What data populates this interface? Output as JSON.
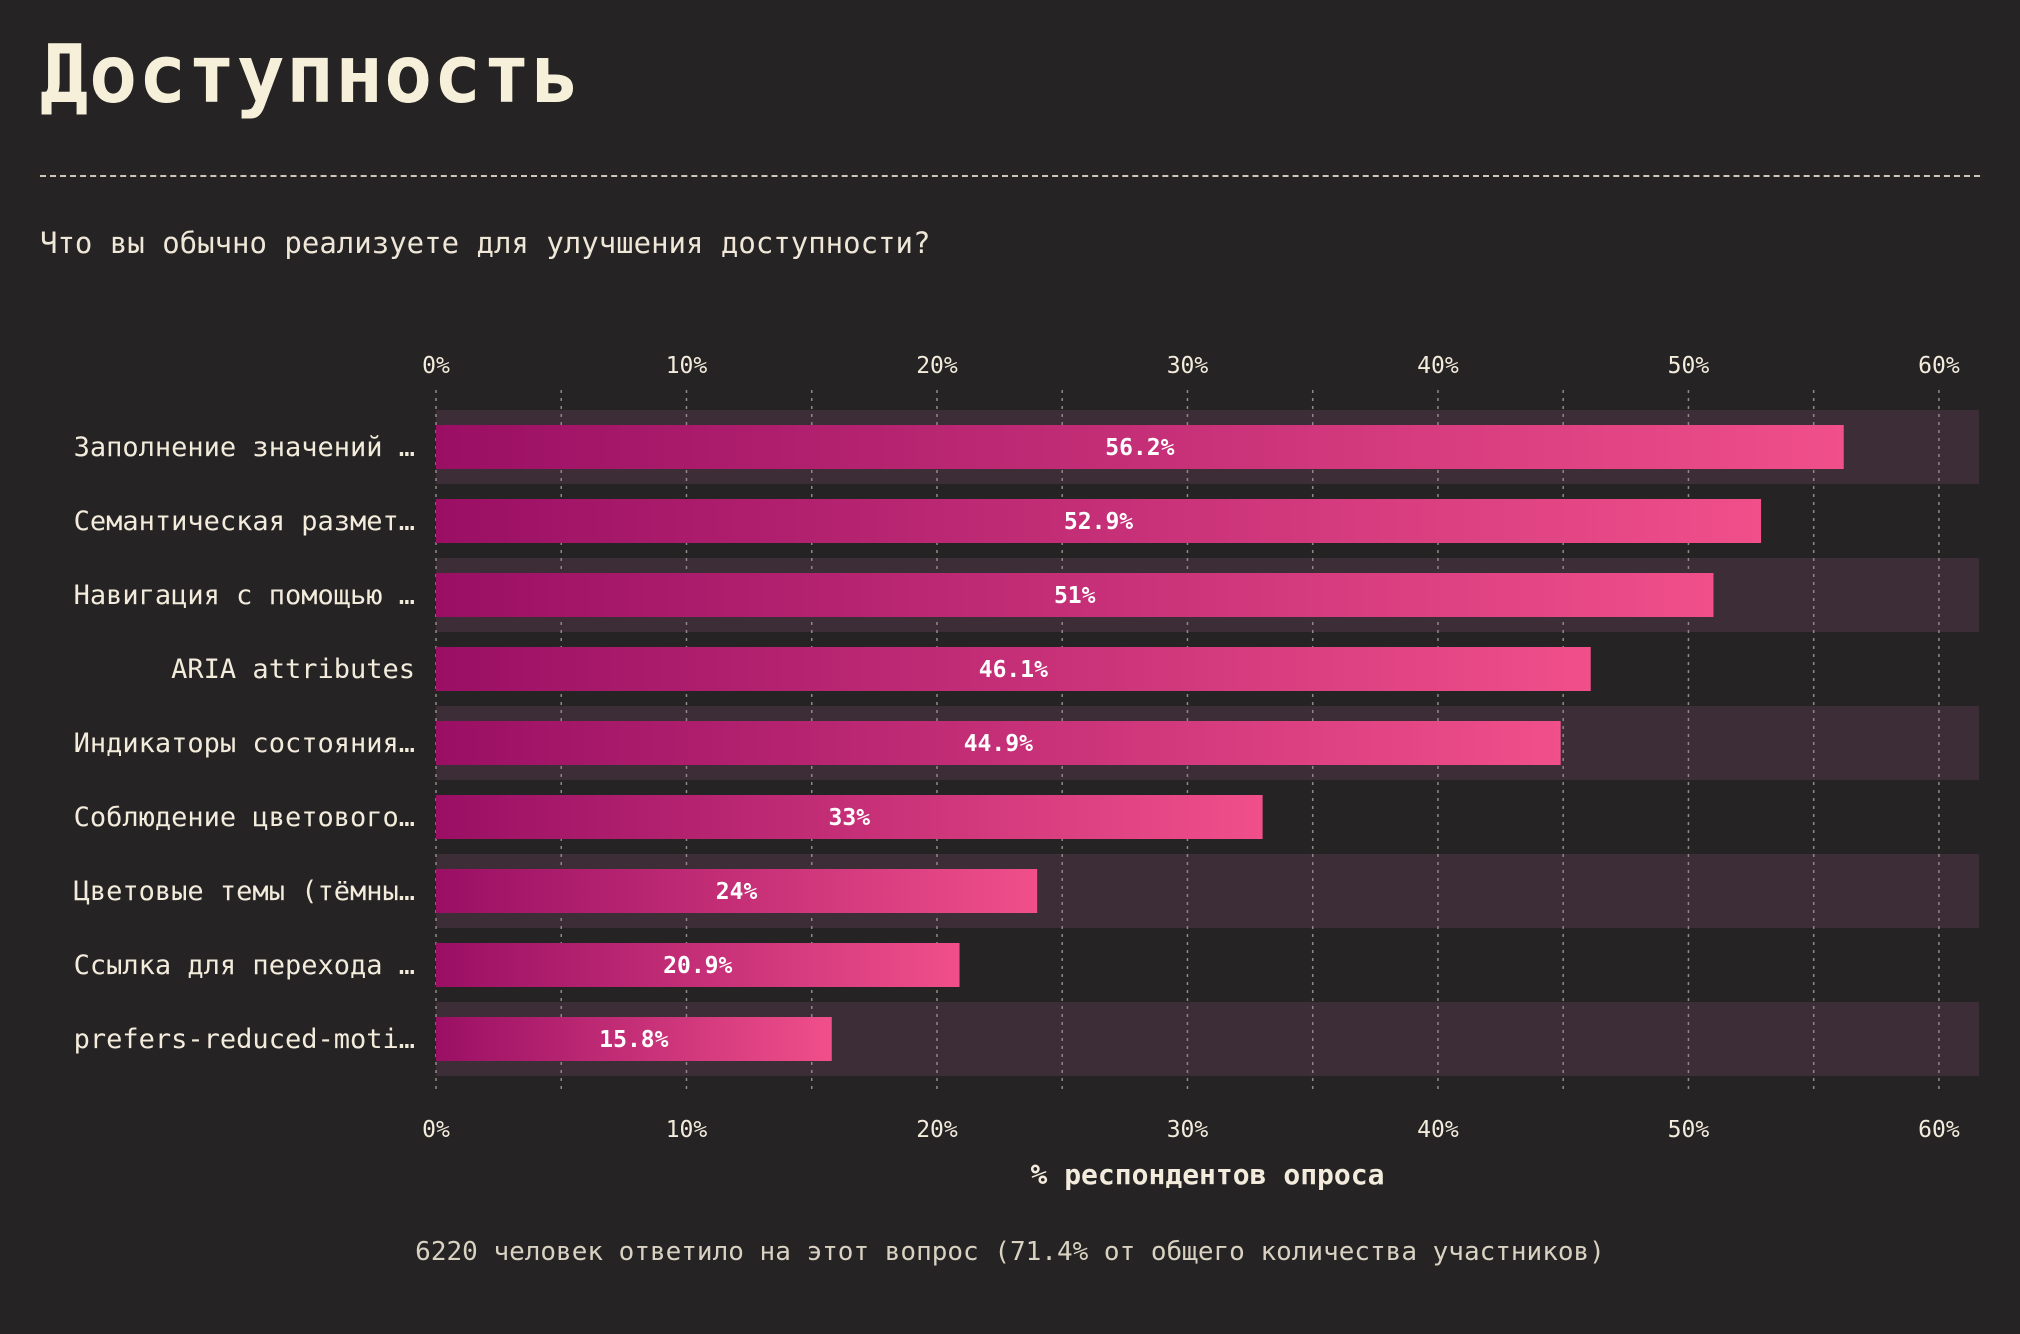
{
  "page": {
    "title": "Доступность",
    "question": "Что вы обычно реализуете для улучшения доступности?",
    "footnote": "6220 человек ответило на этот вопрос (71.4% от общего количества участников)"
  },
  "colors": {
    "background": "#262324",
    "band": "#3c2d36",
    "bar_start": "#9a0f64",
    "bar_end": "#f04f8a",
    "text": "#f3ecdc"
  },
  "chart_data": {
    "type": "bar",
    "orientation": "horizontal",
    "categories": [
      "Заполнение значений …",
      "Семантическая размет…",
      "Навигация с помощью …",
      "ARIA attributes",
      "Индикаторы состояния…",
      "Соблюдение цветового…",
      "Цветовые темы (тёмны…",
      "Ссылка для перехода …",
      "prefers-reduced-moti…"
    ],
    "values": [
      56.2,
      52.9,
      51,
      46.1,
      44.9,
      33,
      24,
      20.9,
      15.8
    ],
    "value_labels": [
      "56.2%",
      "52.9%",
      "51%",
      "46.1%",
      "44.9%",
      "33%",
      "24%",
      "20.9%",
      "15.8%"
    ],
    "xlabel": "% респондентов опроса",
    "xlim": [
      0,
      61.6
    ],
    "xticks": [
      0,
      10,
      20,
      30,
      40,
      50,
      60
    ],
    "xtick_labels": [
      "0%",
      "10%",
      "20%",
      "30%",
      "40%",
      "50%",
      "60%"
    ],
    "minor_grid_step": 5,
    "grid": true
  }
}
